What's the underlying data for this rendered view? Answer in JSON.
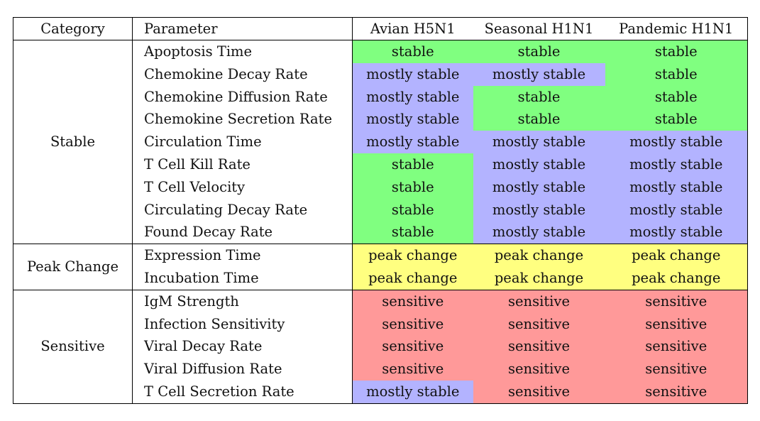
{
  "table": {
    "headers": [
      "Category",
      "Parameter",
      "Avian H5N1",
      "Seasonal H1N1",
      "Pandemic H1N1"
    ],
    "colors": {
      "stable": "#80ff80",
      "mostly stable": "#b3b3ff",
      "peak change": "#ffff80",
      "sensitive": "#ff9999"
    },
    "groups": [
      {
        "category": "Stable",
        "rows": [
          {
            "parameter": "Apoptosis Time",
            "values": [
              "stable",
              "stable",
              "stable"
            ]
          },
          {
            "parameter": "Chemokine Decay Rate",
            "values": [
              "mostly stable",
              "mostly stable",
              "stable"
            ]
          },
          {
            "parameter": "Chemokine Diffusion Rate",
            "values": [
              "mostly stable",
              "stable",
              "stable"
            ]
          },
          {
            "parameter": "Chemokine Secretion Rate",
            "values": [
              "mostly stable",
              "stable",
              "stable"
            ]
          },
          {
            "parameter": "Circulation Time",
            "values": [
              "mostly stable",
              "mostly stable",
              "mostly stable"
            ]
          },
          {
            "parameter": "T Cell Kill Rate",
            "values": [
              "stable",
              "mostly stable",
              "mostly stable"
            ]
          },
          {
            "parameter": "T Cell Velocity",
            "values": [
              "stable",
              "mostly stable",
              "mostly stable"
            ]
          },
          {
            "parameter": "Circulating Decay Rate",
            "values": [
              "stable",
              "mostly stable",
              "mostly stable"
            ]
          },
          {
            "parameter": "Found Decay Rate",
            "values": [
              "stable",
              "mostly stable",
              "mostly stable"
            ]
          }
        ]
      },
      {
        "category": "Peak Change",
        "rows": [
          {
            "parameter": "Expression Time",
            "values": [
              "peak change",
              "peak change",
              "peak change"
            ]
          },
          {
            "parameter": "Incubation Time",
            "values": [
              "peak change",
              "peak change",
              "peak change"
            ]
          }
        ]
      },
      {
        "category": "Sensitive",
        "rows": [
          {
            "parameter": "IgM Strength",
            "values": [
              "sensitive",
              "sensitive",
              "sensitive"
            ]
          },
          {
            "parameter": "Infection Sensitivity",
            "values": [
              "sensitive",
              "sensitive",
              "sensitive"
            ]
          },
          {
            "parameter": "Viral Decay Rate",
            "values": [
              "sensitive",
              "sensitive",
              "sensitive"
            ]
          },
          {
            "parameter": "Viral Diffusion Rate",
            "values": [
              "sensitive",
              "sensitive",
              "sensitive"
            ]
          },
          {
            "parameter": "T Cell Secretion Rate",
            "values": [
              "mostly stable",
              "sensitive",
              "sensitive"
            ]
          }
        ]
      }
    ]
  }
}
